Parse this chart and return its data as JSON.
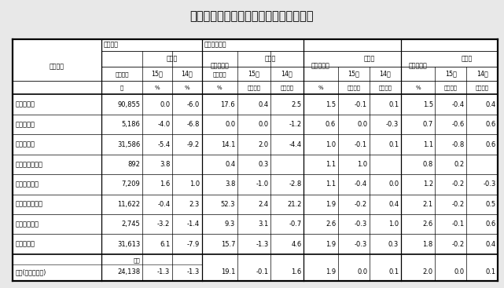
{
  "title": "表１３　年平均雇用状況（３０人以上）",
  "rows": [
    [
      "調査産業計",
      "90,855",
      "0.0",
      "-6.0",
      "17.6",
      "0.4",
      "2.5",
      "1.5",
      "-0.1",
      "0.1",
      "1.5",
      "-0.4",
      "0.4"
    ],
    [
      "建　設　業",
      "5,186",
      "-4.0",
      "-6.8",
      "0.0",
      "0.0",
      "-1.2",
      "0.6",
      "0.0",
      "-0.3",
      "0.7",
      "-0.6",
      "0.6"
    ],
    [
      "製　造　業",
      "31,586",
      "-5.4",
      "-9.2",
      "14.1",
      "2.0",
      "-4.4",
      "1.0",
      "-0.1",
      "0.1",
      "1.1",
      "-0.8",
      "0.6"
    ],
    [
      "電気ガス水道業",
      "892",
      "3.8",
      "",
      "0.4",
      "0.3",
      "",
      "1.1",
      "1.0",
      "",
      "0.8",
      "0.2",
      ""
    ],
    [
      "運　輸通信業",
      "7,209",
      "1.6",
      "1.0",
      "3.8",
      "-1.0",
      "-2.8",
      "1.1",
      "-0.4",
      "0.0",
      "1.2",
      "-0.2",
      "-0.3"
    ],
    [
      "卸小売業飲食店",
      "11,622",
      "-0.4",
      "2.3",
      "52.3",
      "2.4",
      "21.2",
      "1.9",
      "-0.2",
      "0.4",
      "2.1",
      "-0.2",
      "0.5"
    ],
    [
      "金　融保険業",
      "2,745",
      "-3.2",
      "-1.4",
      "9.3",
      "3.1",
      "-0.7",
      "2.6",
      "-0.3",
      "1.0",
      "2.6",
      "-0.1",
      "0.6"
    ],
    [
      "サービス業",
      "31,613",
      "6.1",
      "-7.9",
      "15.7",
      "-1.3",
      "4.6",
      "1.9",
      "-0.3",
      "0.3",
      "1.8",
      "-0.2",
      "0.4"
    ]
  ],
  "footer_unit": "千人",
  "footer_row": [
    "全国(調査産業計)",
    "24,138",
    "-1.3",
    "-1.3",
    "19.1",
    "-0.1",
    "1.6",
    "1.9",
    "0.0",
    "0.1",
    "2.0",
    "0.0",
    "0.1"
  ],
  "bg_color": "#e8e8e8",
  "table_bg": "#ffffff",
  "col_widths_rel": [
    1.55,
    0.72,
    0.52,
    0.52,
    0.62,
    0.58,
    0.58,
    0.6,
    0.55,
    0.55,
    0.6,
    0.55,
    0.55
  ],
  "title_fontsize": 10.5,
  "hdr_fontsize": 5.8,
  "data_fontsize": 6.0
}
